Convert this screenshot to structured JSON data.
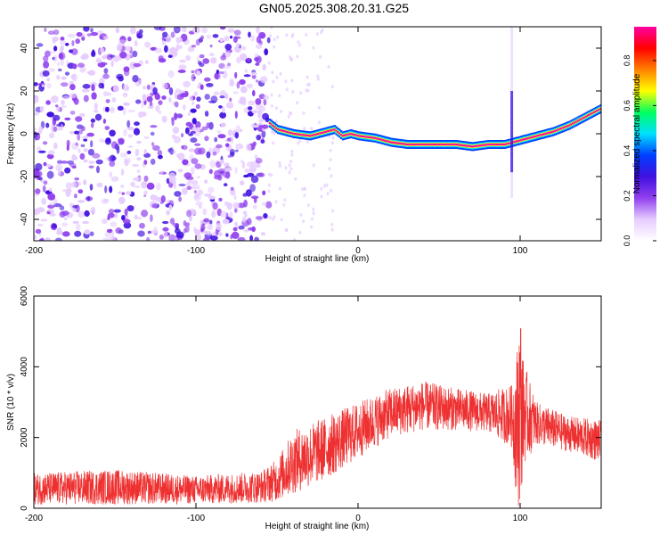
{
  "title": "GN05.2025.308.20.31.G25",
  "colors": {
    "snr_line": "#ee3030",
    "colormap": [
      "#ffffff",
      "#e6ccff",
      "#9040ee",
      "#4010e0",
      "#0040ff",
      "#00e0ff",
      "#00ff60",
      "#ffff00",
      "#ff8000",
      "#ff0000",
      "#ff00a0"
    ]
  },
  "chart_data": [
    {
      "type": "heatmap",
      "name": "spectrogram",
      "xlabel": "Height of straight line (km)",
      "ylabel": "Frequency (Hz)",
      "xlim": [
        -200,
        150
      ],
      "ylim": [
        -50,
        50
      ],
      "xticks": [
        -200,
        -100,
        0,
        100
      ],
      "yticks": [
        -40,
        -20,
        0,
        20,
        40
      ],
      "noise_region_x": [
        -200,
        -55
      ],
      "ridge": {
        "x": [
          -55,
          -50,
          -40,
          -30,
          -20,
          -15,
          -10,
          -5,
          0,
          10,
          20,
          30,
          40,
          50,
          60,
          70,
          80,
          90,
          95,
          100,
          110,
          120,
          130,
          140,
          150
        ],
        "freq": [
          5,
          2,
          0,
          -1,
          1,
          2,
          -1,
          0,
          -1,
          -2,
          -4,
          -5,
          -5,
          -5,
          -5,
          -6,
          -5,
          -5,
          -4,
          -3,
          -1,
          1,
          4,
          8,
          12
        ]
      },
      "colorbar": {
        "label": "Normalized spectral amplitude",
        "range": [
          0,
          0.95
        ],
        "ticks": [
          "0.0",
          "0.2",
          "0.4",
          "0.6",
          "0.8"
        ]
      }
    },
    {
      "type": "line",
      "name": "snr",
      "xlabel": "Height of straight line (km)",
      "ylabel": "SNR (10 * v/v)",
      "xlim": [
        -200,
        150
      ],
      "ylim": [
        0,
        6000
      ],
      "xticks": [
        -200,
        -100,
        0,
        100
      ],
      "yticks": [
        0,
        2000,
        4000,
        6000
      ],
      "envelope": {
        "x": [
          -200,
          -150,
          -100,
          -60,
          -50,
          -40,
          -20,
          0,
          20,
          40,
          60,
          80,
          95,
          98,
          100,
          102,
          110,
          130,
          150
        ],
        "baseline": [
          550,
          600,
          520,
          600,
          800,
          1300,
          1700,
          2200,
          2700,
          2900,
          2800,
          2700,
          2600,
          2300,
          3000,
          2700,
          2400,
          2100,
          1900
        ],
        "amplitude": [
          450,
          500,
          400,
          450,
          600,
          900,
          900,
          800,
          700,
          700,
          600,
          550,
          900,
          2200,
          3000,
          1500,
          600,
          500,
          600
        ]
      }
    }
  ]
}
